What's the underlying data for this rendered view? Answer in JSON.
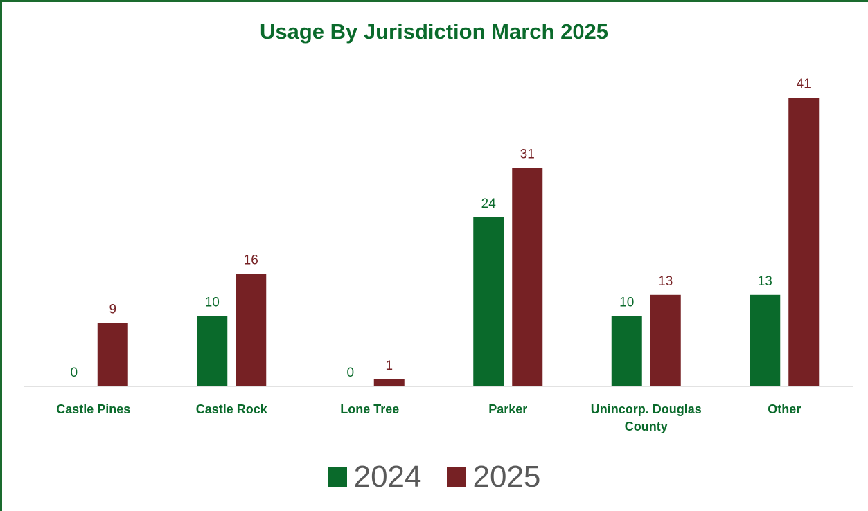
{
  "chart_data": {
    "type": "bar",
    "title": "Usage By Jurisdiction March 2025",
    "categories": [
      "Castle Pines",
      "Castle Rock",
      "Lone Tree",
      "Parker",
      "Unincorp. Douglas County",
      "Other"
    ],
    "series": [
      {
        "name": "2024",
        "values": [
          0,
          10,
          0,
          24,
          10,
          13
        ],
        "color": "#0a6a2b"
      },
      {
        "name": "2025",
        "values": [
          9,
          16,
          1,
          31,
          13,
          41
        ],
        "color": "#762124"
      }
    ],
    "ylim": [
      0,
      44
    ],
    "grid": false,
    "legend": "bottom"
  }
}
